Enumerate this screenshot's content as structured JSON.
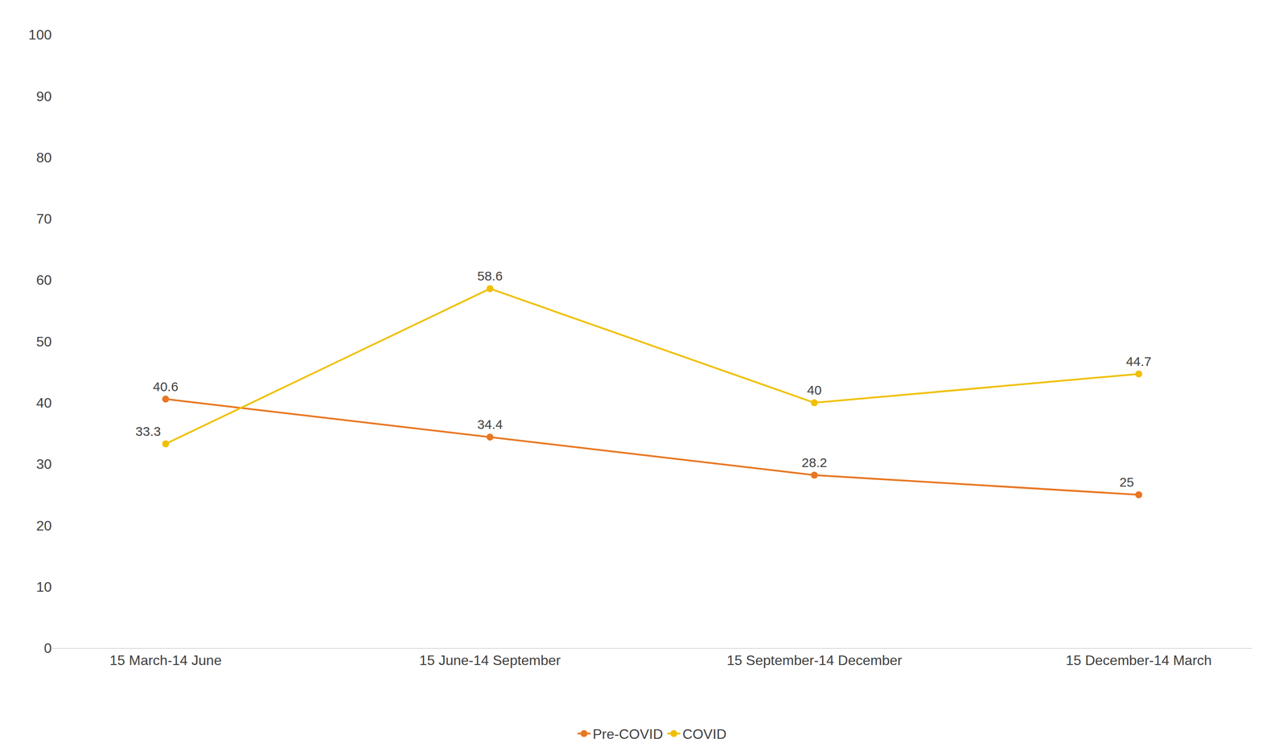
{
  "chart_data": {
    "type": "line",
    "categories": [
      "15 March-14 June",
      "15 June-14 September",
      "15 September-14 December",
      "15 December-14 March"
    ],
    "series": [
      {
        "name": "Pre-COVID",
        "color": "#E87722",
        "values": [
          40.6,
          34.4,
          28.2,
          25
        ],
        "marker": "circle"
      },
      {
        "name": "COVID",
        "color": "#F0C000",
        "values": [
          33.3,
          58.6,
          40,
          44.7
        ],
        "marker": "circle"
      }
    ],
    "ylim": [
      0,
      100
    ],
    "yticks": [
      0,
      10,
      20,
      30,
      40,
      50,
      60,
      70,
      80,
      90,
      100
    ],
    "grid": false,
    "legend": "bottom",
    "data_labels": true
  }
}
